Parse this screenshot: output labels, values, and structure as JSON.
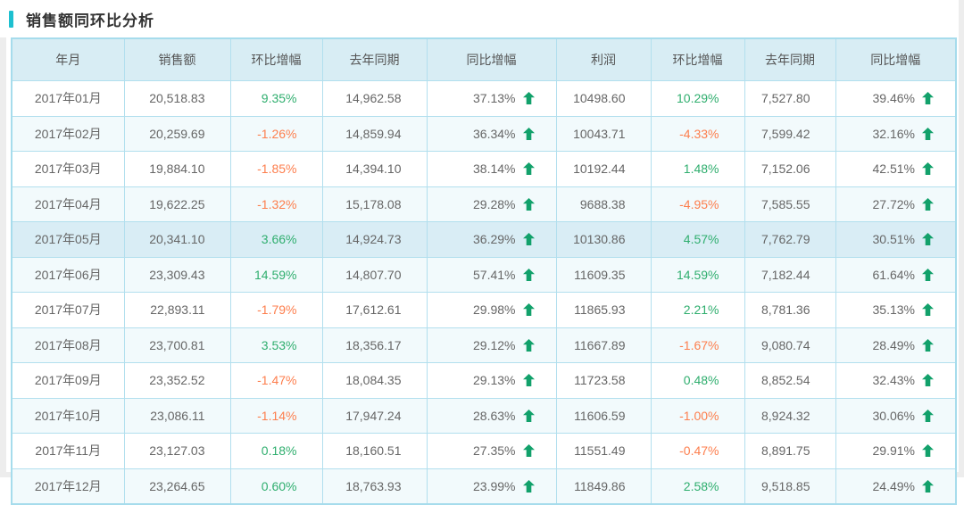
{
  "page": {
    "title": "销售额同环比分析"
  },
  "colors": {
    "accent": "#1ec0d0",
    "header_bg": "#d8edf4",
    "border_outer": "#a6dcec",
    "border_inner": "#b2dfee",
    "zebra": "#f2fafc",
    "hover_row": "#d9edf5",
    "positive": "#2fae6e",
    "negative": "#fd7e4d",
    "arrow_up": "#12a16b"
  },
  "icons": {
    "up_arrow": "up-arrow-icon"
  },
  "table": {
    "columns": [
      {
        "label": "年月"
      },
      {
        "label": "销售额"
      },
      {
        "label": "环比增幅"
      },
      {
        "label": "去年同期"
      },
      {
        "label": "同比增幅"
      },
      {
        "label": "利润"
      },
      {
        "label": "环比增幅"
      },
      {
        "label": "去年同期"
      },
      {
        "label": "同比增幅"
      }
    ],
    "highlighted_row_index": 4,
    "rows": [
      {
        "month": "2017年01月",
        "sales": "20,518.83",
        "sales_mom": "9.35%",
        "sales_last_year": "14,962.58",
        "sales_yoy": "37.13%",
        "profit": "10498.60",
        "profit_mom": "10.29%",
        "profit_last_year": "7,527.80",
        "profit_yoy": "39.46%"
      },
      {
        "month": "2017年02月",
        "sales": "20,259.69",
        "sales_mom": "-1.26%",
        "sales_last_year": "14,859.94",
        "sales_yoy": "36.34%",
        "profit": "10043.71",
        "profit_mom": "-4.33%",
        "profit_last_year": "7,599.42",
        "profit_yoy": "32.16%"
      },
      {
        "month": "2017年03月",
        "sales": "19,884.10",
        "sales_mom": "-1.85%",
        "sales_last_year": "14,394.10",
        "sales_yoy": "38.14%",
        "profit": "10192.44",
        "profit_mom": "1.48%",
        "profit_last_year": "7,152.06",
        "profit_yoy": "42.51%"
      },
      {
        "month": "2017年04月",
        "sales": "19,622.25",
        "sales_mom": "-1.32%",
        "sales_last_year": "15,178.08",
        "sales_yoy": "29.28%",
        "profit": "9688.38",
        "profit_mom": "-4.95%",
        "profit_last_year": "7,585.55",
        "profit_yoy": "27.72%"
      },
      {
        "month": "2017年05月",
        "sales": "20,341.10",
        "sales_mom": "3.66%",
        "sales_last_year": "14,924.73",
        "sales_yoy": "36.29%",
        "profit": "10130.86",
        "profit_mom": "4.57%",
        "profit_last_year": "7,762.79",
        "profit_yoy": "30.51%"
      },
      {
        "month": "2017年06月",
        "sales": "23,309.43",
        "sales_mom": "14.59%",
        "sales_last_year": "14,807.70",
        "sales_yoy": "57.41%",
        "profit": "11609.35",
        "profit_mom": "14.59%",
        "profit_last_year": "7,182.44",
        "profit_yoy": "61.64%"
      },
      {
        "month": "2017年07月",
        "sales": "22,893.11",
        "sales_mom": "-1.79%",
        "sales_last_year": "17,612.61",
        "sales_yoy": "29.98%",
        "profit": "11865.93",
        "profit_mom": "2.21%",
        "profit_last_year": "8,781.36",
        "profit_yoy": "35.13%"
      },
      {
        "month": "2017年08月",
        "sales": "23,700.81",
        "sales_mom": "3.53%",
        "sales_last_year": "18,356.17",
        "sales_yoy": "29.12%",
        "profit": "11667.89",
        "profit_mom": "-1.67%",
        "profit_last_year": "9,080.74",
        "profit_yoy": "28.49%"
      },
      {
        "month": "2017年09月",
        "sales": "23,352.52",
        "sales_mom": "-1.47%",
        "sales_last_year": "18,084.35",
        "sales_yoy": "29.13%",
        "profit": "11723.58",
        "profit_mom": "0.48%",
        "profit_last_year": "8,852.54",
        "profit_yoy": "32.43%"
      },
      {
        "month": "2017年10月",
        "sales": "23,086.11",
        "sales_mom": "-1.14%",
        "sales_last_year": "17,947.24",
        "sales_yoy": "28.63%",
        "profit": "11606.59",
        "profit_mom": "-1.00%",
        "profit_last_year": "8,924.32",
        "profit_yoy": "30.06%"
      },
      {
        "month": "2017年11月",
        "sales": "23,127.03",
        "sales_mom": "0.18%",
        "sales_last_year": "18,160.51",
        "sales_yoy": "27.35%",
        "profit": "11551.49",
        "profit_mom": "-0.47%",
        "profit_last_year": "8,891.75",
        "profit_yoy": "29.91%"
      },
      {
        "month": "2017年12月",
        "sales": "23,264.65",
        "sales_mom": "0.60%",
        "sales_last_year": "18,763.93",
        "sales_yoy": "23.99%",
        "profit": "11849.86",
        "profit_mom": "2.58%",
        "profit_last_year": "9,518.85",
        "profit_yoy": "24.49%"
      }
    ]
  }
}
